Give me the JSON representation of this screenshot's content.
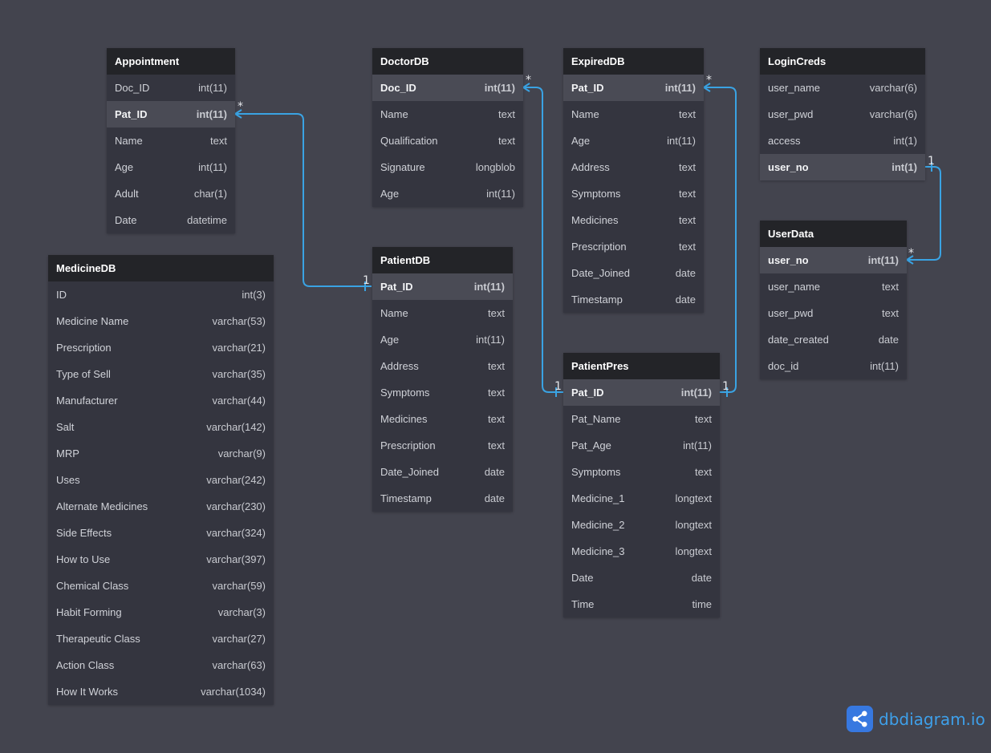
{
  "tables": [
    {
      "name": "Appointment",
      "fields": [
        {
          "name": "Doc_ID",
          "type": "int(11)"
        },
        {
          "name": "Pat_ID",
          "type": "int(11)"
        },
        {
          "name": "Name",
          "type": "text"
        },
        {
          "name": "Age",
          "type": "int(11)"
        },
        {
          "name": "Adult",
          "type": "char(1)"
        },
        {
          "name": "Date",
          "type": "datetime"
        }
      ]
    },
    {
      "name": "DoctorDB",
      "fields": [
        {
          "name": "Doc_ID",
          "type": "int(11)"
        },
        {
          "name": "Name",
          "type": "text"
        },
        {
          "name": "Qualification",
          "type": "text"
        },
        {
          "name": "Signature",
          "type": "longblob"
        },
        {
          "name": "Age",
          "type": "int(11)"
        }
      ]
    },
    {
      "name": "ExpiredDB",
      "fields": [
        {
          "name": "Pat_ID",
          "type": "int(11)"
        },
        {
          "name": "Name",
          "type": "text"
        },
        {
          "name": "Age",
          "type": "int(11)"
        },
        {
          "name": "Address",
          "type": "text"
        },
        {
          "name": "Symptoms",
          "type": "text"
        },
        {
          "name": "Medicines",
          "type": "text"
        },
        {
          "name": "Prescription",
          "type": "text"
        },
        {
          "name": "Date_Joined",
          "type": "date"
        },
        {
          "name": "Timestamp",
          "type": "date"
        }
      ]
    },
    {
      "name": "LoginCreds",
      "fields": [
        {
          "name": "user_name",
          "type": "varchar(6)"
        },
        {
          "name": "user_pwd",
          "type": "varchar(6)"
        },
        {
          "name": "access",
          "type": "int(1)"
        },
        {
          "name": "user_no",
          "type": "int(1)"
        }
      ]
    },
    {
      "name": "MedicineDB",
      "fields": [
        {
          "name": "ID",
          "type": "int(3)"
        },
        {
          "name": "Medicine Name",
          "type": "varchar(53)"
        },
        {
          "name": "Prescription",
          "type": "varchar(21)"
        },
        {
          "name": "Type of Sell",
          "type": "varchar(35)"
        },
        {
          "name": "Manufacturer",
          "type": "varchar(44)"
        },
        {
          "name": "Salt",
          "type": "varchar(142)"
        },
        {
          "name": "MRP",
          "type": "varchar(9)"
        },
        {
          "name": "Uses",
          "type": "varchar(242)"
        },
        {
          "name": "Alternate Medicines",
          "type": "varchar(230)"
        },
        {
          "name": "Side Effects",
          "type": "varchar(324)"
        },
        {
          "name": "How to Use",
          "type": "varchar(397)"
        },
        {
          "name": "Chemical Class",
          "type": "varchar(59)"
        },
        {
          "name": "Habit Forming",
          "type": "varchar(3)"
        },
        {
          "name": "Therapeutic Class",
          "type": "varchar(27)"
        },
        {
          "name": "Action Class",
          "type": "varchar(63)"
        },
        {
          "name": "How It Works",
          "type": "varchar(1034)"
        }
      ]
    },
    {
      "name": "PatientDB",
      "fields": [
        {
          "name": "Pat_ID",
          "type": "int(11)"
        },
        {
          "name": "Name",
          "type": "text"
        },
        {
          "name": "Age",
          "type": "int(11)"
        },
        {
          "name": "Address",
          "type": "text"
        },
        {
          "name": "Symptoms",
          "type": "text"
        },
        {
          "name": "Medicines",
          "type": "text"
        },
        {
          "name": "Prescription",
          "type": "text"
        },
        {
          "name": "Date_Joined",
          "type": "date"
        },
        {
          "name": "Timestamp",
          "type": "date"
        }
      ]
    },
    {
      "name": "PatientPres",
      "fields": [
        {
          "name": "Pat_ID",
          "type": "int(11)"
        },
        {
          "name": "Pat_Name",
          "type": "text"
        },
        {
          "name": "Pat_Age",
          "type": "int(11)"
        },
        {
          "name": "Symptoms",
          "type": "text"
        },
        {
          "name": "Medicine_1",
          "type": "longtext"
        },
        {
          "name": "Medicine_2",
          "type": "longtext"
        },
        {
          "name": "Medicine_3",
          "type": "longtext"
        },
        {
          "name": "Date",
          "type": "date"
        },
        {
          "name": "Time",
          "type": "time"
        }
      ]
    },
    {
      "name": "UserData",
      "fields": [
        {
          "name": "user_no",
          "type": "int(11)"
        },
        {
          "name": "user_name",
          "type": "text"
        },
        {
          "name": "user_pwd",
          "type": "text"
        },
        {
          "name": "date_created",
          "type": "date"
        },
        {
          "name": "doc_id",
          "type": "int(11)"
        }
      ]
    }
  ],
  "relationships": [
    {
      "from": "Appointment.Pat_ID",
      "from_card": "*",
      "to": "PatientDB.Pat_ID",
      "to_card": "1"
    },
    {
      "from": "DoctorDB.Doc_ID",
      "from_card": "*",
      "to": "PatientPres.Pat_ID",
      "to_card": "1"
    },
    {
      "from": "ExpiredDB.Pat_ID",
      "from_card": "*",
      "to": "PatientPres.Pat_ID",
      "to_card": "1"
    },
    {
      "from": "LoginCreds.user_no",
      "from_card": "1",
      "to": "UserData.user_no",
      "to_card": "*"
    }
  ],
  "colors": {
    "canvas": "#43444e",
    "header": "#232428",
    "body": "#34353f",
    "key_row": "#4a4b55",
    "link": "#3aa3e3",
    "brand": "#3778e0"
  },
  "brand": {
    "name": "dbdiagram.io",
    "icon": "share-nodes-icon"
  }
}
